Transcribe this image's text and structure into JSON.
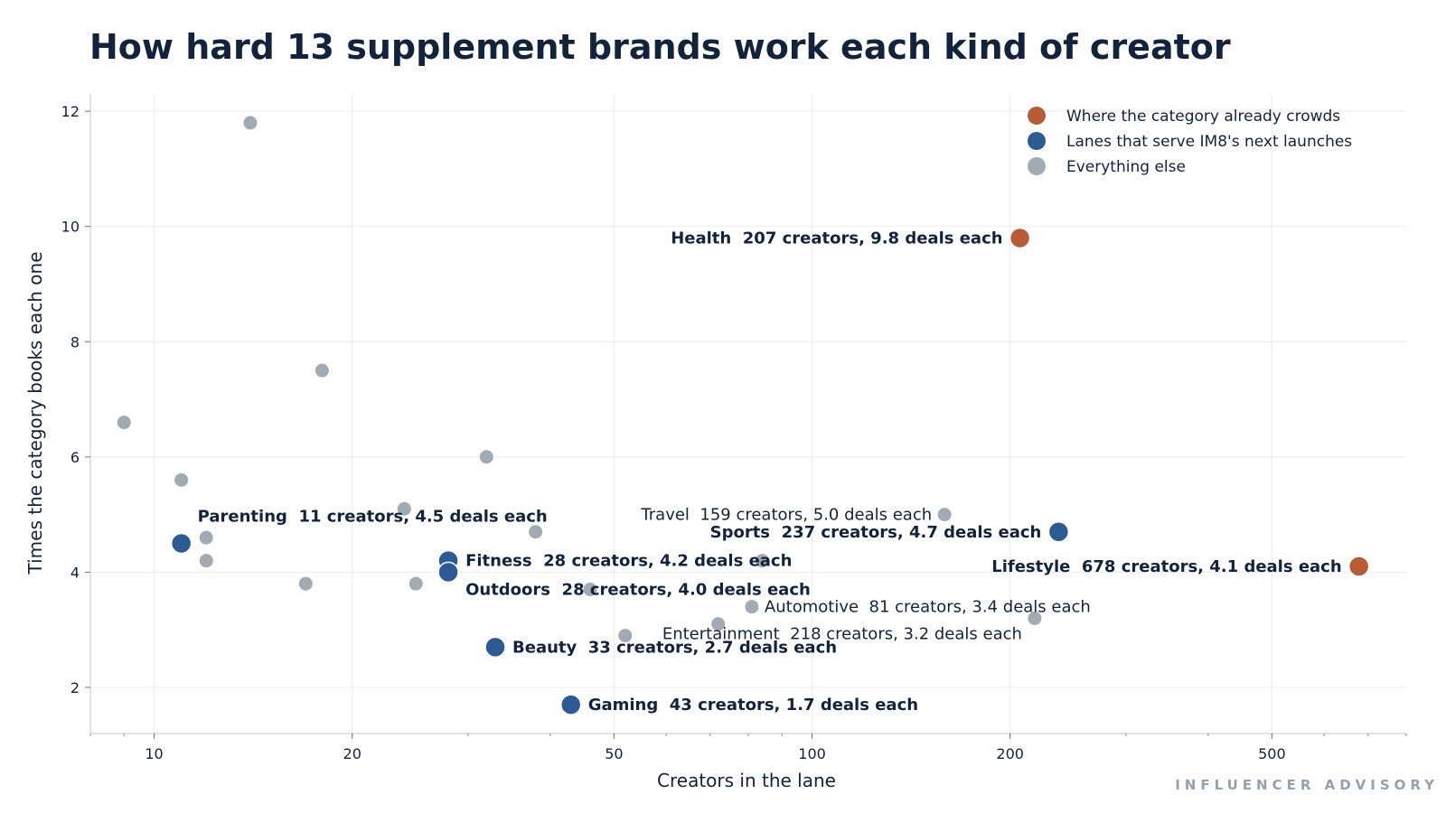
{
  "chart_data": {
    "type": "scatter",
    "title": "How hard 13 supplement brands work each kind of creator",
    "xlabel": "Creators in the lane",
    "ylabel": "Times the category books each one",
    "x_scale": "log",
    "xlim": [
      8,
      800
    ],
    "ylim": [
      1.2,
      12.3
    ],
    "x_ticks": [
      10,
      20,
      50,
      100,
      200,
      500
    ],
    "y_ticks": [
      2,
      4,
      6,
      8,
      10,
      12
    ],
    "grid": true,
    "legend_position": "top-right",
    "series": [
      {
        "name": "Where the category already crowds",
        "color": "#b85c38",
        "points": [
          {
            "x": 207,
            "y": 9.8,
            "label": "Health",
            "detail": "207 creators, 9.8 deals each",
            "label_side": "left"
          },
          {
            "x": 678,
            "y": 4.1,
            "label": "Lifestyle",
            "detail": "678 creators, 4.1 deals each",
            "label_side": "left"
          }
        ]
      },
      {
        "name": "Lanes that serve IM8's next launches",
        "color": "#2d5a93",
        "points": [
          {
            "x": 11,
            "y": 4.5,
            "label": "Parenting",
            "detail": "11 creators, 4.5 deals each",
            "label_side": "above-right"
          },
          {
            "x": 28,
            "y": 4.2,
            "label": "Fitness",
            "detail": "28 creators, 4.2 deals each",
            "label_side": "right"
          },
          {
            "x": 28,
            "y": 4.0,
            "label": "Outdoors",
            "detail": "28 creators, 4.0 deals each",
            "label_side": "below-right"
          },
          {
            "x": 33,
            "y": 2.7,
            "label": "Beauty",
            "detail": "33 creators, 2.7 deals each",
            "label_side": "right"
          },
          {
            "x": 43,
            "y": 1.7,
            "label": "Gaming",
            "detail": "43 creators, 1.7 deals each",
            "label_side": "right"
          },
          {
            "x": 237,
            "y": 4.7,
            "label": "Sports",
            "detail": "237 creators, 4.7 deals each",
            "label_side": "left"
          }
        ]
      },
      {
        "name": "Everything else",
        "color": "#a2aab3",
        "points": [
          {
            "x": 14,
            "y": 11.8
          },
          {
            "x": 18,
            "y": 7.5
          },
          {
            "x": 9,
            "y": 6.6
          },
          {
            "x": 11,
            "y": 5.6
          },
          {
            "x": 32,
            "y": 6.0
          },
          {
            "x": 24,
            "y": 5.1
          },
          {
            "x": 12,
            "y": 4.6
          },
          {
            "x": 12,
            "y": 4.2
          },
          {
            "x": 17,
            "y": 3.8
          },
          {
            "x": 25,
            "y": 3.8
          },
          {
            "x": 38,
            "y": 4.7
          },
          {
            "x": 46,
            "y": 3.7
          },
          {
            "x": 52,
            "y": 2.9
          },
          {
            "x": 72,
            "y": 3.1
          },
          {
            "x": 84,
            "y": 4.2
          },
          {
            "x": 159,
            "y": 5.0,
            "label": "Travel",
            "detail": "159 creators, 5.0 deals each",
            "label_side": "left"
          },
          {
            "x": 81,
            "y": 3.4,
            "label": "Automotive",
            "detail": "81 creators, 3.4 deals each",
            "label_side": "right"
          },
          {
            "x": 218,
            "y": 3.2,
            "label": "Entertainment",
            "detail": "218 creators, 3.2 deals each",
            "label_side": "below-left"
          }
        ]
      }
    ]
  },
  "footer": {
    "brand": "INFLUENCER ADVISORY"
  }
}
